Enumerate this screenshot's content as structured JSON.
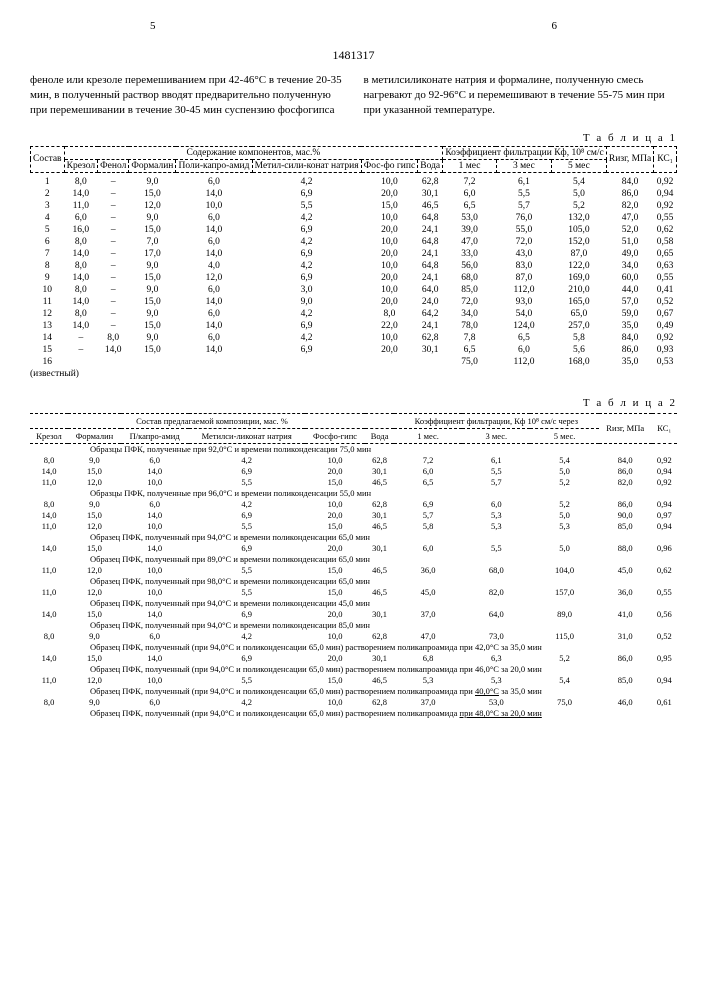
{
  "header": {
    "page_left": "5",
    "page_right": "6",
    "doc_id": "1481317"
  },
  "paragraphs": {
    "left": "феноле или крезоле перемешиванием при 42-46°С в течение 20-35 мин, в полученный раствор вводят предварительно полученную при перемешивании в течение 30-45 мин суспензию фосфогипса",
    "right": "в метилсиликонате натрия и формалине, полученную смесь нагревают до 92-96°С и перемешивают в течение 55-75 мин при при указанной температуре."
  },
  "table1": {
    "label": "Т а б л и ц а  1",
    "head_row1": [
      "Состав",
      "Содержание компонентов, мас.%",
      "Коэффициент фильтрации Кф, 10⁸ см/с",
      "Rизг, МПа",
      "КС₁"
    ],
    "head_row2": [
      "Крезол",
      "Фенол",
      "Формалин",
      "Поли-капро-амид",
      "Метил-сили-конат натрия",
      "Фос-фо гипс",
      "Вода",
      "1 мес",
      "3 мес",
      "5 мес"
    ],
    "rows": [
      [
        "1",
        "8,0",
        "–",
        "9,0",
        "6,0",
        "4,2",
        "10,0",
        "62,8",
        "7,2",
        "6,1",
        "5,4",
        "84,0",
        "0,92"
      ],
      [
        "2",
        "14,0",
        "–",
        "15,0",
        "14,0",
        "6,9",
        "20,0",
        "30,1",
        "6,0",
        "5,5",
        "5,0",
        "86,0",
        "0,94"
      ],
      [
        "3",
        "11,0",
        "–",
        "12,0",
        "10,0",
        "5,5",
        "15,0",
        "46,5",
        "6,5",
        "5,7",
        "5,2",
        "82,0",
        "0,92"
      ],
      [
        "4",
        "6,0",
        "–",
        "9,0",
        "6,0",
        "4,2",
        "10,0",
        "64,8",
        "53,0",
        "76,0",
        "132,0",
        "47,0",
        "0,55"
      ],
      [
        "5",
        "16,0",
        "–",
        "15,0",
        "14,0",
        "6,9",
        "20,0",
        "24,1",
        "39,0",
        "55,0",
        "105,0",
        "52,0",
        "0,62"
      ],
      [
        "6",
        "8,0",
        "–",
        "7,0",
        "6,0",
        "4,2",
        "10,0",
        "64,8",
        "47,0",
        "72,0",
        "152,0",
        "51,0",
        "0,58"
      ],
      [
        "7",
        "14,0",
        "–",
        "17,0",
        "14,0",
        "6,9",
        "20,0",
        "24,1",
        "33,0",
        "43,0",
        "87,0",
        "49,0",
        "0,65"
      ],
      [
        "8",
        "8,0",
        "–",
        "9,0",
        "4,0",
        "4,2",
        "10,0",
        "64,8",
        "56,0",
        "83,0",
        "122,0",
        "34,0",
        "0,63"
      ],
      [
        "9",
        "14,0",
        "–",
        "15,0",
        "12,0",
        "6,9",
        "20,0",
        "24,1",
        "68,0",
        "87,0",
        "169,0",
        "60,0",
        "0,55"
      ],
      [
        "10",
        "8,0",
        "–",
        "9,0",
        "6,0",
        "3,0",
        "10,0",
        "64,0",
        "85,0",
        "112,0",
        "210,0",
        "44,0",
        "0,41"
      ],
      [
        "11",
        "14,0",
        "–",
        "15,0",
        "14,0",
        "9,0",
        "20,0",
        "24,0",
        "72,0",
        "93,0",
        "165,0",
        "57,0",
        "0,52"
      ],
      [
        "12",
        "8,0",
        "–",
        "9,0",
        "6,0",
        "4,2",
        "8,0",
        "64,2",
        "34,0",
        "54,0",
        "65,0",
        "59,0",
        "0,67"
      ],
      [
        "13",
        "14,0",
        "–",
        "15,0",
        "14,0",
        "6,9",
        "22,0",
        "24,1",
        "78,0",
        "124,0",
        "257,0",
        "35,0",
        "0,49"
      ],
      [
        "14",
        "–",
        "8,0",
        "9,0",
        "6,0",
        "4,2",
        "10,0",
        "62,8",
        "7,8",
        "6,5",
        "5,8",
        "84,0",
        "0,92"
      ],
      [
        "15",
        "–",
        "14,0",
        "15,0",
        "14,0",
        "6,9",
        "20,0",
        "30,1",
        "6,5",
        "6,0",
        "5,6",
        "86,0",
        "0,93"
      ],
      [
        "16",
        "",
        "",
        "",
        "",
        "",
        "",
        "",
        "75,0",
        "112,0",
        "168,0",
        "35,0",
        "0,53"
      ]
    ],
    "footnote": "(известный)"
  },
  "table2": {
    "label": "Т а б л и ц а  2",
    "head_row1": [
      "Состав предлагаемой композиции, мас. %",
      "Коэффициент фильтрации, Кф 10⁸ см/с через",
      "Rизг, МПа",
      "КС₁"
    ],
    "head_row2": [
      "Крезол",
      "Формалин",
      "П/капро-амид",
      "Метилси-ликонат натрия",
      "Фосфо-гипс",
      "Вода",
      "1 мес.",
      "3 мес.",
      "5 мес."
    ],
    "sections": [
      {
        "note": "Образцы ПФК, полученные при 92,0°С и времени поликонденсации 75,0 мин",
        "rows": [
          [
            "8,0",
            "9,0",
            "6,0",
            "4,2",
            "10,0",
            "62,8",
            "7,2",
            "6,1",
            "5,4",
            "84,0",
            "0,92"
          ],
          [
            "14,0",
            "15,0",
            "14,0",
            "6,9",
            "20,0",
            "30,1",
            "6,0",
            "5,5",
            "5,0",
            "86,0",
            "0,94"
          ],
          [
            "11,0",
            "12,0",
            "10,0",
            "5,5",
            "15,0",
            "46,5",
            "6,5",
            "5,7",
            "5,2",
            "82,0",
            "0,92"
          ]
        ]
      },
      {
        "note": "Образцы ПФК, полученные при 96,0°С и времени поликонденсации 55,0 мин",
        "rows": [
          [
            "8,0",
            "9,0",
            "6,0",
            "4,2",
            "10,0",
            "62,8",
            "6,9",
            "6,0",
            "5,2",
            "86,0",
            "0,94"
          ],
          [
            "14,0",
            "15,0",
            "14,0",
            "6,9",
            "20,0",
            "30,1",
            "5,7",
            "5,3",
            "5,0",
            "90,0",
            "0,97"
          ],
          [
            "11,0",
            "12,0",
            "10,0",
            "5,5",
            "15,0",
            "46,5",
            "5,8",
            "5,3",
            "5,3",
            "85,0",
            "0,94"
          ]
        ]
      },
      {
        "note": "Образец ПФК, полученный при 94,0°С и времени поликонденсации 65,0 мин",
        "rows": [
          [
            "14,0",
            "15,0",
            "14,0",
            "6,9",
            "20,0",
            "30,1",
            "6,0",
            "5,5",
            "5,0",
            "88,0",
            "0,96"
          ]
        ]
      },
      {
        "note": "Образец ПФК, полученный при 89,0°С и времени поликонденсации 65,0 мин",
        "rows": [
          [
            "11,0",
            "12,0",
            "10,0",
            "5,5",
            "15,0",
            "46,5",
            "36,0",
            "68,0",
            "104,0",
            "45,0",
            "0,62"
          ]
        ]
      },
      {
        "note": "Образец ПФК, полученный при 98,0°С и времени поликонденсации 65,0 мин",
        "rows": [
          [
            "11,0",
            "12,0",
            "10,0",
            "5,5",
            "15,0",
            "46,5",
            "45,0",
            "82,0",
            "157,0",
            "36,0",
            "0,55"
          ]
        ]
      },
      {
        "note": "Образец ПФК, полученный при 94,0°С и времени поликонденсации 45,0 мин",
        "rows": [
          [
            "14,0",
            "15,0",
            "14,0",
            "6,9",
            "20,0",
            "30,1",
            "37,0",
            "64,0",
            "89,0",
            "41,0",
            "0,56"
          ]
        ]
      },
      {
        "note": "Образец ПФК, полученный при 94,0°С и времени поликонденсации 85,0 мин",
        "rows": [
          [
            "8,0",
            "9,0",
            "6,0",
            "4,2",
            "10,0",
            "62,8",
            "47,0",
            "73,0",
            "115,0",
            "31,0",
            "0,52"
          ]
        ]
      },
      {
        "note": "Образец ПФК, полученный (при 94,0°С и поликонденсации 65,0 мин) растворением поликапроамида при 42,0°С за 35,0 мин",
        "rows": [
          [
            "14,0",
            "15,0",
            "14,0",
            "6,9",
            "20,0",
            "30,1",
            "6,8",
            "6,3",
            "5,2",
            "86,0",
            "0,95"
          ]
        ]
      },
      {
        "note": "Образец ПФК, полученный (при 94,0°С и поликонденсации 65,0 мин) растворением поликапроамида при 46,0°С за 20,0 мин",
        "rows": [
          [
            "11,0",
            "12,0",
            "10,0",
            "5,5",
            "15,0",
            "46,5",
            "5,3",
            "5,3",
            "5,4",
            "85,0",
            "0,94"
          ]
        ]
      },
      {
        "note": "Образец ПФК, полученный (при 94,0°С и поликонденсации 65,0 мин) растворением поликапроамида при <u>40,0°С</u> за 35,0 мин",
        "rows": [
          [
            "8,0",
            "9,0",
            "6,0",
            "4,2",
            "10,0",
            "62,8",
            "37,0",
            "53,0",
            "75,0",
            "46,0",
            "0,61"
          ]
        ]
      },
      {
        "note": "Образец ПФК, полученный (при 94,0°С и поликонденсации 65,0 мин) растворением поликапроамида <u>при 48,0°С за 20,0 мин</u>",
        "rows": []
      }
    ]
  }
}
